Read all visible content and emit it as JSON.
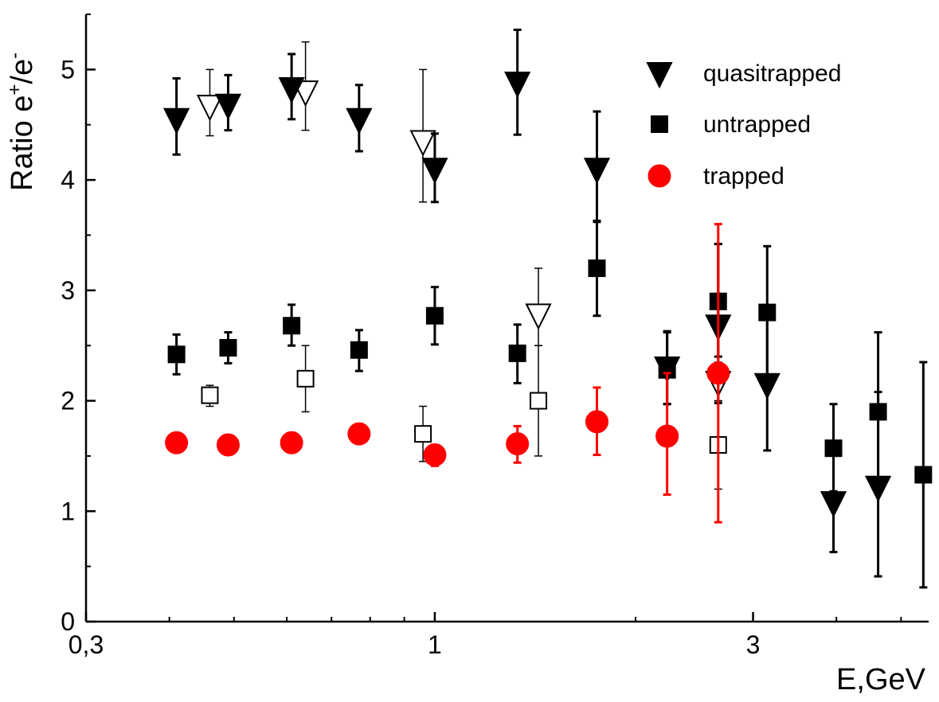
{
  "chart_data": {
    "type": "scatter",
    "xlabel": "E,GeV",
    "ylabel_main": "Ratio e",
    "ylabel_sup1": "+",
    "ylabel_mid": "/e",
    "ylabel_sup2": "-",
    "x_scale": "log",
    "xlim": [
      0.3,
      5.5
    ],
    "ylim": [
      0,
      5.5
    ],
    "x_ticks": [
      {
        "value": 0.3,
        "label": "0,3"
      },
      {
        "value": 1,
        "label": "1"
      },
      {
        "value": 3,
        "label": "3"
      }
    ],
    "y_ticks": [
      {
        "value": 0,
        "label": "0"
      },
      {
        "value": 1,
        "label": "1"
      },
      {
        "value": 2,
        "label": "2"
      },
      {
        "value": 3,
        "label": "3"
      },
      {
        "value": 4,
        "label": "4"
      },
      {
        "value": 5,
        "label": "5"
      }
    ],
    "grid": false,
    "legend_position": "top-right",
    "series": [
      {
        "name": "quasitrapped",
        "marker": "triangle-down",
        "filled": true,
        "color": "#000000",
        "points": [
          {
            "x": 0.41,
            "y": 4.55,
            "lo": 4.23,
            "hi": 4.92
          },
          {
            "x": 0.49,
            "y": 4.68,
            "lo": 4.45,
            "hi": 4.95
          },
          {
            "x": 0.61,
            "y": 4.83,
            "lo": 4.55,
            "hi": 5.14
          },
          {
            "x": 0.77,
            "y": 4.55,
            "lo": 4.26,
            "hi": 4.86
          },
          {
            "x": 1.0,
            "y": 4.1,
            "lo": 3.8,
            "hi": 4.42
          },
          {
            "x": 1.33,
            "y": 4.88,
            "lo": 4.41,
            "hi": 5.36
          },
          {
            "x": 1.75,
            "y": 4.1,
            "lo": 3.62,
            "hi": 4.62
          },
          {
            "x": 2.23,
            "y": 2.3,
            "lo": 1.97,
            "hi": 2.63
          },
          {
            "x": 2.66,
            "y": 2.68,
            "lo": 1.98,
            "hi": 3.42
          },
          {
            "x": 3.15,
            "y": 2.15,
            "lo": 1.55,
            "hi": 2.8
          },
          {
            "x": 3.96,
            "y": 1.08,
            "lo": 0.63,
            "hi": 1.55
          },
          {
            "x": 4.62,
            "y": 1.22,
            "lo": 0.41,
            "hi": 2.08
          }
        ]
      },
      {
        "name": "untrapped",
        "marker": "square",
        "filled": true,
        "color": "#000000",
        "points": [
          {
            "x": 0.41,
            "y": 2.42,
            "lo": 2.24,
            "hi": 2.6
          },
          {
            "x": 0.49,
            "y": 2.48,
            "lo": 2.34,
            "hi": 2.62
          },
          {
            "x": 0.61,
            "y": 2.68,
            "lo": 2.5,
            "hi": 2.87
          },
          {
            "x": 0.77,
            "y": 2.46,
            "lo": 2.27,
            "hi": 2.64
          },
          {
            "x": 1.0,
            "y": 2.77,
            "lo": 2.51,
            "hi": 3.03
          },
          {
            "x": 1.33,
            "y": 2.43,
            "lo": 2.16,
            "hi": 2.69
          },
          {
            "x": 1.75,
            "y": 3.2,
            "lo": 2.77,
            "hi": 3.63
          },
          {
            "x": 2.23,
            "y": 2.28,
            "lo": 1.97,
            "hi": 2.62
          },
          {
            "x": 2.66,
            "y": 2.9,
            "lo": 2.4,
            "hi": 3.42
          },
          {
            "x": 3.15,
            "y": 2.8,
            "lo": 2.2,
            "hi": 3.4
          },
          {
            "x": 3.96,
            "y": 1.57,
            "lo": 1.18,
            "hi": 1.97
          },
          {
            "x": 4.62,
            "y": 1.9,
            "lo": 1.18,
            "hi": 2.62
          },
          {
            "x": 5.4,
            "y": 1.33,
            "lo": 0.31,
            "hi": 2.35
          }
        ]
      },
      {
        "name": "trapped",
        "marker": "circle",
        "filled": true,
        "color": "#ff0000",
        "points": [
          {
            "x": 0.41,
            "y": 1.62,
            "lo": 1.62,
            "hi": 1.62
          },
          {
            "x": 0.49,
            "y": 1.6,
            "lo": 1.6,
            "hi": 1.6
          },
          {
            "x": 0.61,
            "y": 1.62,
            "lo": 1.62,
            "hi": 1.62
          },
          {
            "x": 0.77,
            "y": 1.7,
            "lo": 1.7,
            "hi": 1.7
          },
          {
            "x": 1.0,
            "y": 1.51,
            "lo": 1.41,
            "hi": 1.6
          },
          {
            "x": 1.33,
            "y": 1.61,
            "lo": 1.44,
            "hi": 1.77
          },
          {
            "x": 1.75,
            "y": 1.81,
            "lo": 1.51,
            "hi": 2.12
          },
          {
            "x": 2.23,
            "y": 1.68,
            "lo": 1.15,
            "hi": 2.25
          },
          {
            "x": 2.66,
            "y": 2.25,
            "lo": 0.9,
            "hi": 3.6
          }
        ]
      },
      {
        "marker": "triangle-down",
        "filled": false,
        "color": "#000000",
        "points": [
          {
            "x": 0.46,
            "y": 4.67,
            "lo": 4.4,
            "hi": 5.0
          },
          {
            "x": 0.64,
            "y": 4.8,
            "lo": 4.45,
            "hi": 5.25
          },
          {
            "x": 0.96,
            "y": 4.35,
            "lo": 3.8,
            "hi": 5.0
          },
          {
            "x": 1.43,
            "y": 2.78,
            "lo": 2.5,
            "hi": 3.2
          },
          {
            "x": 2.66,
            "y": 2.17,
            "lo": 2.0,
            "hi": 2.35
          }
        ]
      },
      {
        "marker": "square",
        "filled": false,
        "color": "#000000",
        "points": [
          {
            "x": 0.46,
            "y": 2.05,
            "lo": 1.95,
            "hi": 2.14
          },
          {
            "x": 0.64,
            "y": 2.2,
            "lo": 1.9,
            "hi": 2.5
          },
          {
            "x": 0.96,
            "y": 1.7,
            "lo": 1.45,
            "hi": 1.95
          },
          {
            "x": 1.43,
            "y": 2.0,
            "lo": 1.5,
            "hi": 2.5
          },
          {
            "x": 2.66,
            "y": 1.6,
            "lo": 1.2,
            "hi": 2.0
          }
        ]
      }
    ]
  }
}
